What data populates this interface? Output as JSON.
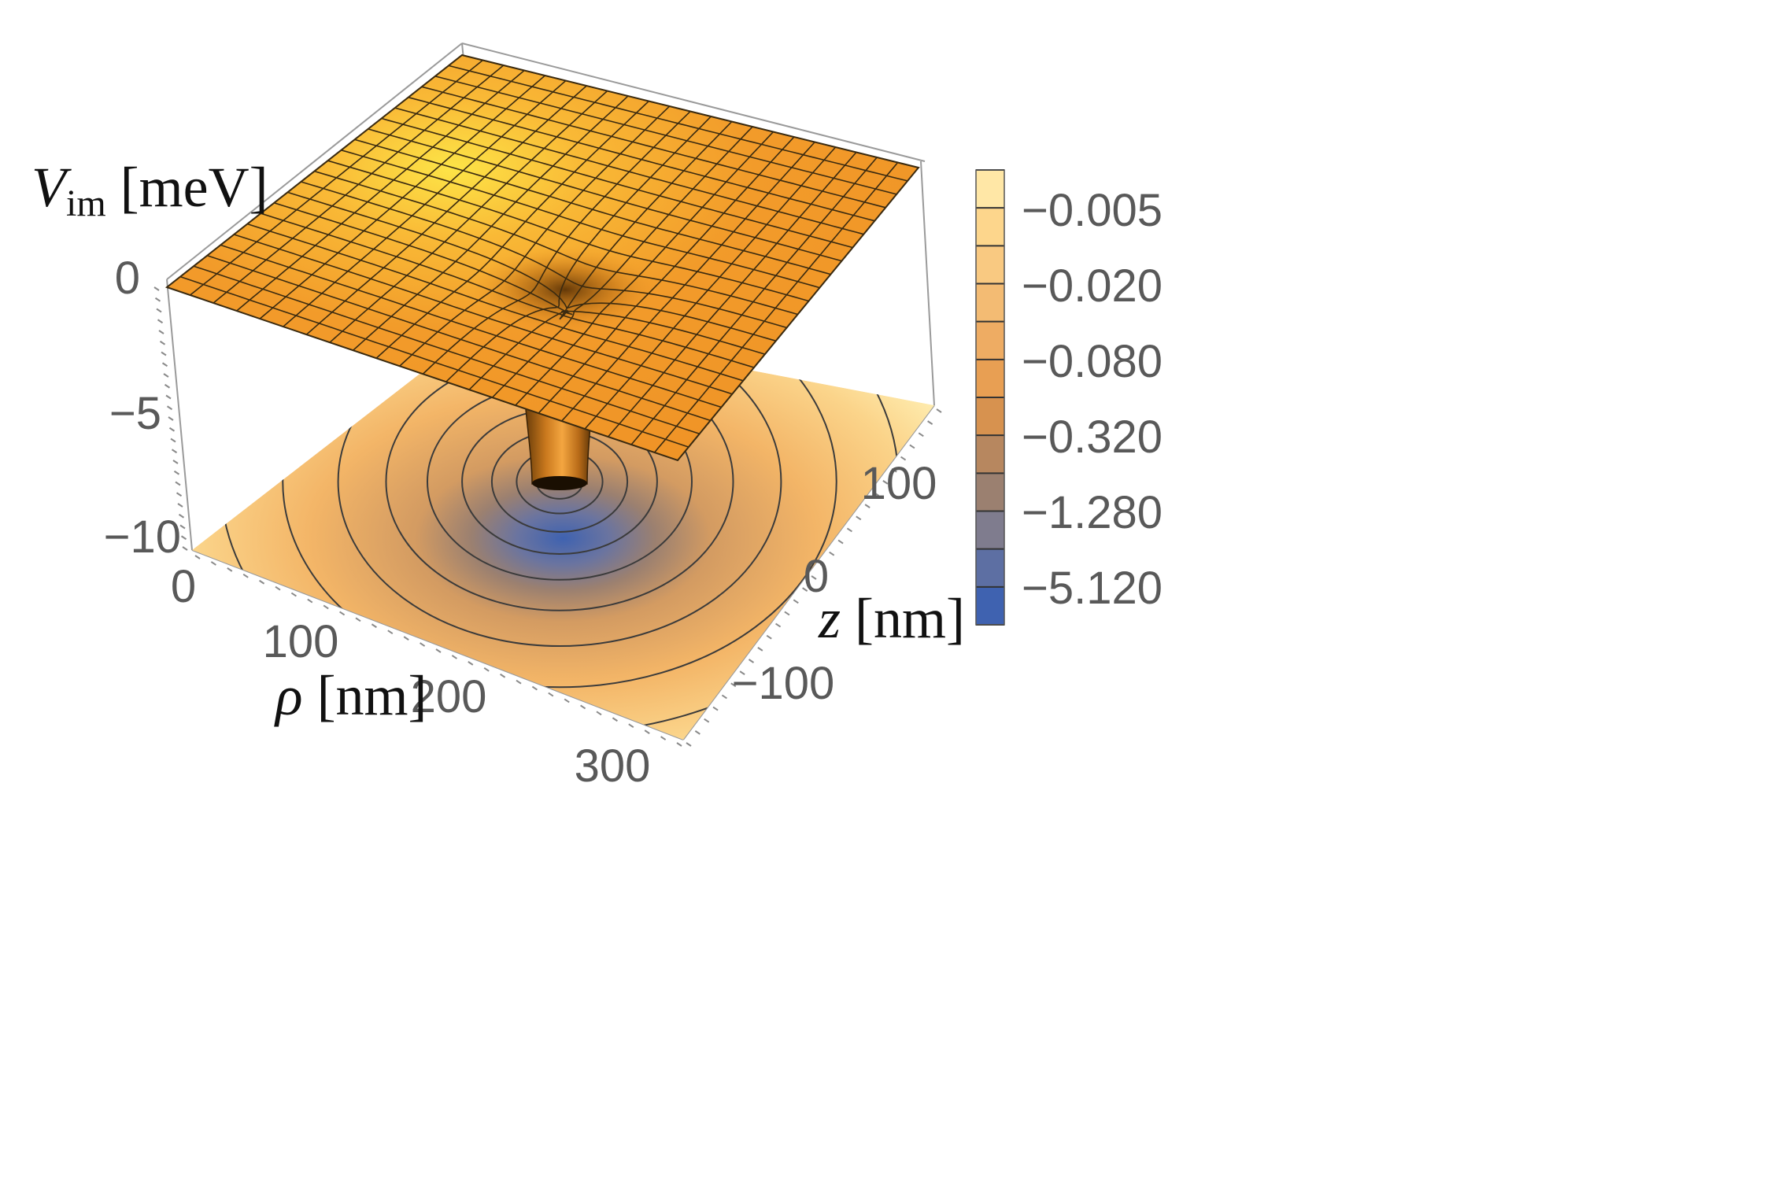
{
  "chart_data": {
    "type": "surface3d",
    "title": "",
    "axes": {
      "x": {
        "label_symbol": "ρ",
        "label_unit": "[nm]",
        "ticks": [
          "0",
          "100",
          "200",
          "300"
        ],
        "range": [
          0,
          330
        ]
      },
      "y": {
        "label_symbol": "z",
        "label_unit": "[nm]",
        "ticks": [
          "100",
          "0",
          "−100"
        ],
        "range": [
          -180,
          180
        ]
      },
      "z": {
        "label_symbol": "V",
        "label_sub": "im",
        "label_unit": "[meV]",
        "ticks": [
          "0",
          "−5",
          "−10"
        ],
        "range": [
          -11,
          0.5
        ]
      }
    },
    "surface": {
      "description_values": "flat near 0 meV, sharp dip centered near rho=150, z=0",
      "center": {
        "rho": 150,
        "z": 0
      },
      "plateau_value": 0,
      "min_value": -11
    },
    "colorbar": {
      "tick_labels": [
        "−0.005",
        "−0.020",
        "−0.080",
        "−0.320",
        "−1.280",
        "−5.120"
      ],
      "levels": 12,
      "colors": [
        "#ffe7a6",
        "#fdd68c",
        "#f9c981",
        "#f3bb73",
        "#eeac63",
        "#e89f53",
        "#d7924f",
        "#b7875f",
        "#9b8070",
        "#7f7c8e",
        "#5d6fa3",
        "#3f62b0"
      ]
    },
    "accent_colors": {
      "surface_orange": "#f29b2a",
      "surface_highlight": "#fde447",
      "funnel_dark": "#7a4b10",
      "contour_center": "#3f62b0"
    }
  }
}
